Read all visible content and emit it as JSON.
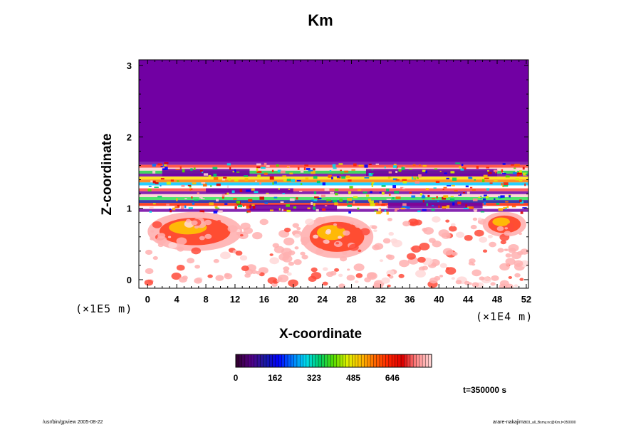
{
  "chart_data": {
    "type": "heatmap",
    "title": "Km",
    "xlabel": "X-coordinate",
    "ylabel": "Z-coordinate",
    "x_unit": "(×1E4 m)",
    "y_unit": "(×1E5 m)",
    "x_ticks": [
      "0",
      "4",
      "8",
      "12",
      "16",
      "20",
      "24",
      "28",
      "32",
      "36",
      "40",
      "44",
      "48",
      "52"
    ],
    "y_ticks": [
      "0",
      "1",
      "2",
      "3"
    ],
    "xlim": [
      -1.2,
      52.3
    ],
    "ylim": [
      -0.12,
      3.08
    ],
    "colorbar": {
      "ticks": [
        "0",
        "162",
        "323",
        "485",
        "646"
      ],
      "tick_values": [
        0,
        162,
        323,
        485,
        646
      ],
      "max": 808,
      "colors": [
        "#330033",
        "#550088",
        "#1a1aa0",
        "#0000ff",
        "#0077ff",
        "#00ddee",
        "#00cc66",
        "#55dd00",
        "#ddee00",
        "#ffbb00",
        "#ff6600",
        "#ff2200",
        "#dd0000",
        "#ff8888",
        "#ffd0d0"
      ]
    },
    "field_summary": {
      "upper_uniform_value": 0,
      "upper_uniform_from_z": 1.65,
      "high_mixing_zones": [
        {
          "x": [
            0,
            13
          ],
          "z": [
            0.4,
            0.95
          ],
          "level": "high"
        },
        {
          "x": [
            21,
            31
          ],
          "z": [
            0.3,
            0.9
          ],
          "level": "high"
        },
        {
          "x": [
            46,
            52
          ],
          "z": [
            0.6,
            0.95
          ],
          "level": "high"
        },
        {
          "x": [
            0,
            52
          ],
          "z": [
            0.95,
            1.65
          ],
          "level": "variable banded"
        }
      ]
    },
    "time_label": "t=350000 s"
  },
  "footer": {
    "left": "/usr/bin/gpview 2005-08-22",
    "right_main": "arare-nakajima",
    "right_sub": "03_all_Bsmy.nc@Km,t=350000"
  }
}
